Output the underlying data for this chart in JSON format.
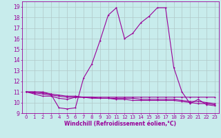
{
  "background_color": "#c8ecec",
  "grid_color": "#b0c8c8",
  "line_color": "#990099",
  "xlabel": "Windchill (Refroidissement éolien,°C)",
  "xlabel_fontsize": 5.5,
  "ytick_fontsize": 5.5,
  "xtick_fontsize": 5.0,
  "ylim": [
    9,
    19.5
  ],
  "xlim": [
    -0.5,
    23.5
  ],
  "yticks": [
    9,
    10,
    11,
    12,
    13,
    14,
    15,
    16,
    17,
    18,
    19
  ],
  "xticks": [
    0,
    1,
    2,
    3,
    4,
    5,
    6,
    7,
    8,
    9,
    10,
    11,
    12,
    13,
    14,
    15,
    16,
    17,
    18,
    19,
    20,
    21,
    22,
    23
  ],
  "series1_x": [
    0,
    1,
    2,
    3,
    4,
    5,
    6,
    7,
    8,
    9,
    10,
    11,
    12,
    13,
    14,
    15,
    16,
    17,
    18,
    19,
    20,
    21,
    22,
    23
  ],
  "series1_y": [
    11.0,
    11.0,
    11.0,
    10.8,
    9.5,
    9.4,
    9.5,
    12.3,
    13.6,
    15.8,
    18.2,
    18.9,
    16.0,
    16.5,
    17.5,
    18.1,
    18.9,
    18.9,
    13.3,
    11.0,
    9.9,
    10.3,
    9.8,
    9.7
  ],
  "series2_x": [
    0,
    1,
    2,
    3,
    4,
    5,
    6,
    7,
    8,
    9,
    10,
    11,
    12,
    13,
    14,
    15,
    16,
    17,
    18,
    19,
    20,
    21,
    22,
    23
  ],
  "series2_y": [
    11.0,
    10.8,
    10.6,
    10.6,
    10.4,
    10.3,
    10.5,
    10.5,
    10.4,
    10.4,
    10.4,
    10.3,
    10.3,
    10.2,
    10.2,
    10.2,
    10.2,
    10.2,
    10.2,
    10.1,
    10.0,
    9.9,
    9.9,
    9.8
  ],
  "series3_x": [
    0,
    1,
    2,
    3,
    4,
    5,
    6,
    7,
    8,
    9,
    10,
    11,
    12,
    13,
    14,
    15,
    16,
    17,
    18,
    19,
    20,
    21,
    22,
    23
  ],
  "series3_y": [
    11.0,
    10.9,
    10.8,
    10.7,
    10.6,
    10.5,
    10.5,
    10.5,
    10.5,
    10.4,
    10.4,
    10.4,
    10.4,
    10.4,
    10.3,
    10.3,
    10.3,
    10.3,
    10.3,
    10.2,
    10.1,
    10.1,
    10.0,
    9.9
  ],
  "series4_x": [
    0,
    1,
    2,
    3,
    4,
    5,
    6,
    7,
    8,
    9,
    10,
    11,
    12,
    13,
    14,
    15,
    16,
    17,
    18,
    19,
    20,
    21,
    22,
    23
  ],
  "series4_y": [
    11.0,
    11.0,
    10.9,
    10.8,
    10.7,
    10.6,
    10.6,
    10.5,
    10.5,
    10.5,
    10.5,
    10.5,
    10.5,
    10.5,
    10.5,
    10.5,
    10.5,
    10.5,
    10.5,
    10.5,
    10.5,
    10.5,
    10.5,
    10.5
  ]
}
